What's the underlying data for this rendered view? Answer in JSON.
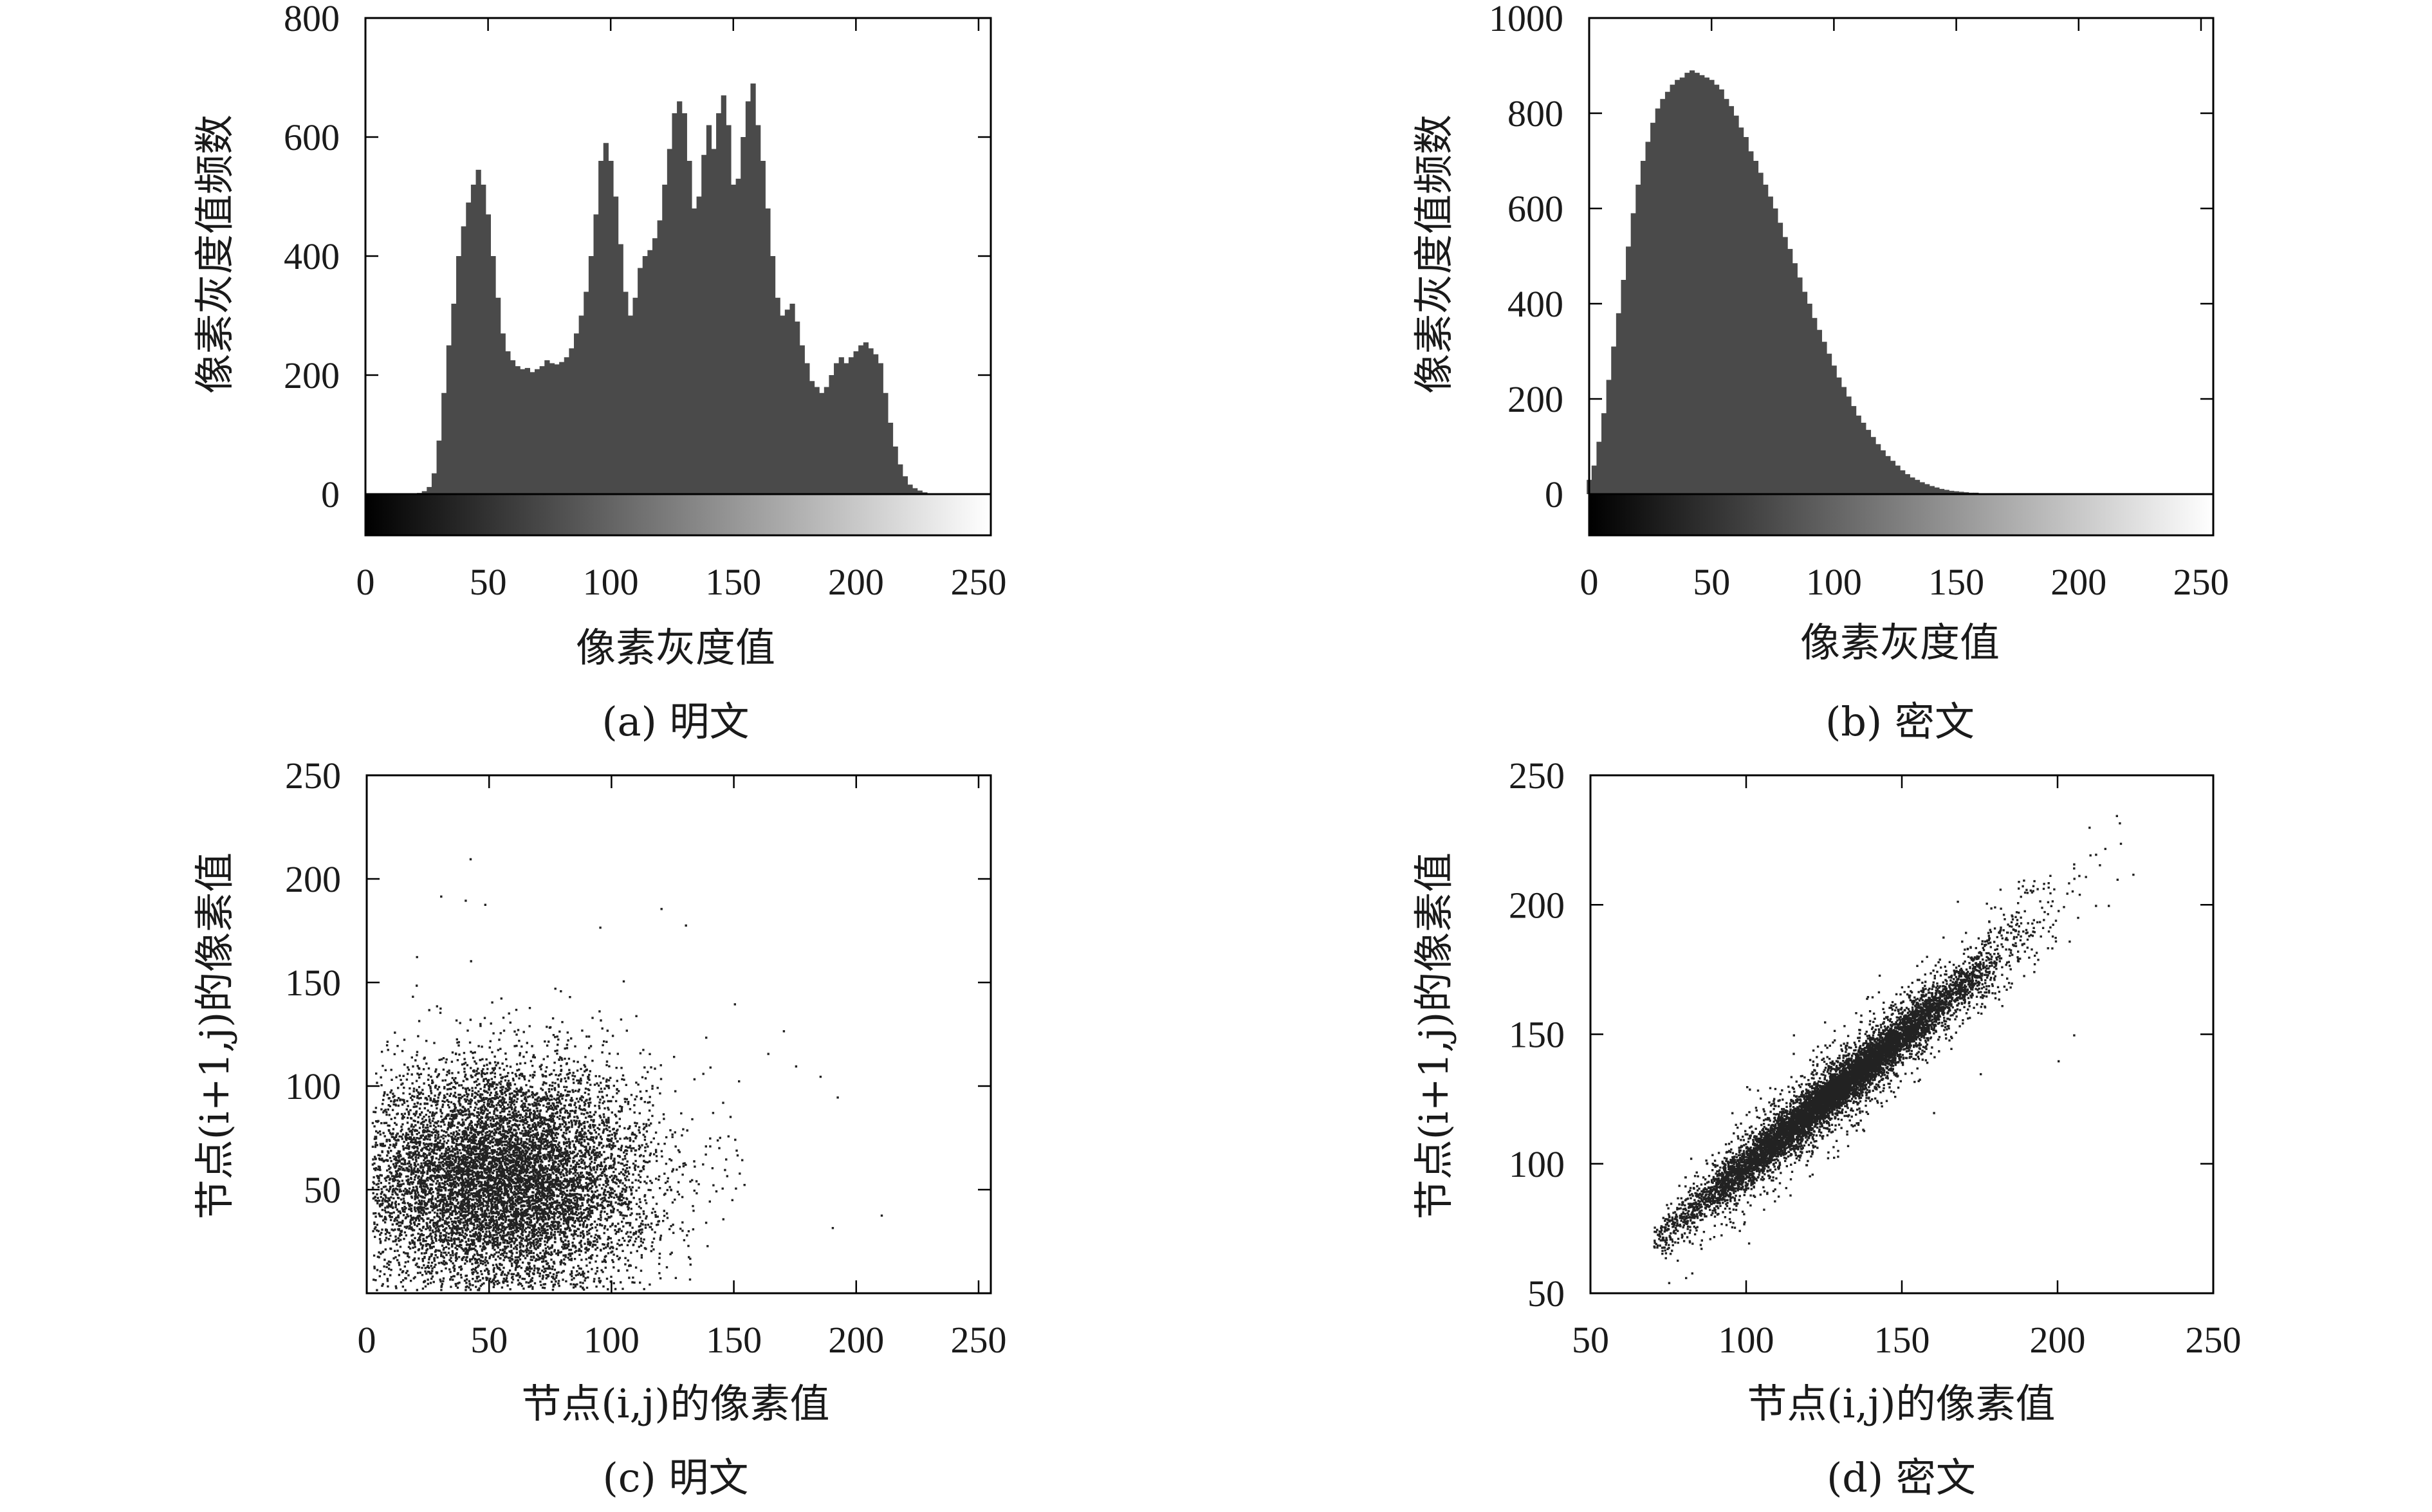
{
  "chart_data": [
    {
      "id": "a",
      "type": "bar",
      "caption": "(a) 明文",
      "xlabel": "像素灰度值",
      "ylabel": "像素灰度值频数",
      "xlim": [
        0,
        255
      ],
      "ylim": [
        0,
        800
      ],
      "xticks": [
        0,
        50,
        100,
        150,
        200,
        250
      ],
      "yticks": [
        0,
        200,
        400,
        600,
        800
      ],
      "grid": false,
      "colorbar": true,
      "bar_color": "#4a4a4a",
      "x": [
        20,
        22,
        24,
        26,
        28,
        30,
        32,
        34,
        36,
        38,
        40,
        42,
        44,
        46,
        48,
        50,
        52,
        54,
        56,
        58,
        60,
        62,
        64,
        66,
        68,
        70,
        72,
        74,
        76,
        78,
        80,
        82,
        84,
        86,
        88,
        90,
        92,
        94,
        96,
        98,
        100,
        102,
        104,
        106,
        108,
        110,
        112,
        114,
        116,
        118,
        120,
        122,
        124,
        126,
        128,
        130,
        132,
        134,
        136,
        138,
        140,
        142,
        144,
        146,
        148,
        150,
        152,
        154,
        156,
        158,
        160,
        162,
        164,
        166,
        168,
        170,
        172,
        174,
        176,
        178,
        180,
        182,
        184,
        186,
        188,
        190,
        192,
        194,
        196,
        198,
        200,
        202,
        204,
        206,
        208,
        210,
        212,
        214,
        216,
        218,
        220,
        222,
        224,
        226,
        228,
        230,
        232
      ],
      "values": [
        0,
        2,
        5,
        12,
        35,
        90,
        170,
        250,
        320,
        400,
        450,
        490,
        520,
        545,
        520,
        470,
        400,
        330,
        270,
        240,
        225,
        215,
        210,
        212,
        205,
        210,
        215,
        225,
        220,
        218,
        222,
        230,
        245,
        270,
        300,
        340,
        400,
        470,
        560,
        590,
        560,
        500,
        420,
        340,
        300,
        330,
        380,
        400,
        410,
        430,
        460,
        520,
        580,
        640,
        660,
        640,
        560,
        480,
        500,
        570,
        620,
        580,
        640,
        670,
        620,
        520,
        530,
        600,
        660,
        690,
        620,
        560,
        480,
        400,
        330,
        300,
        310,
        320,
        290,
        250,
        220,
        190,
        180,
        170,
        180,
        200,
        220,
        230,
        220,
        230,
        240,
        250,
        255,
        245,
        235,
        220,
        170,
        120,
        80,
        50,
        30,
        16,
        10,
        6,
        3,
        1,
        0
      ]
    },
    {
      "id": "b",
      "type": "bar",
      "caption": "(b) 密文",
      "xlabel": "像素灰度值",
      "ylabel": "像素灰度值频数",
      "xlim": [
        0,
        255
      ],
      "ylim": [
        0,
        1000
      ],
      "xticks": [
        0,
        50,
        100,
        150,
        200,
        250
      ],
      "yticks": [
        0,
        200,
        400,
        600,
        800,
        1000
      ],
      "grid": false,
      "colorbar": true,
      "bar_color": "#4a4a4a",
      "x": [
        0,
        2,
        4,
        6,
        8,
        10,
        12,
        14,
        16,
        18,
        20,
        22,
        24,
        26,
        28,
        30,
        32,
        34,
        36,
        38,
        40,
        42,
        44,
        46,
        48,
        50,
        52,
        54,
        56,
        58,
        60,
        62,
        64,
        66,
        68,
        70,
        72,
        74,
        76,
        78,
        80,
        82,
        84,
        86,
        88,
        90,
        92,
        94,
        96,
        98,
        100,
        102,
        104,
        106,
        108,
        110,
        112,
        114,
        116,
        118,
        120,
        122,
        124,
        126,
        128,
        130,
        132,
        134,
        136,
        138,
        140,
        142,
        144,
        146,
        148,
        150,
        152,
        154,
        156,
        158,
        160,
        162,
        164,
        166,
        168,
        170,
        172,
        174,
        176,
        178,
        180,
        185,
        190
      ],
      "values": [
        30,
        60,
        110,
        170,
        240,
        310,
        380,
        450,
        520,
        590,
        650,
        700,
        740,
        780,
        810,
        830,
        845,
        860,
        870,
        875,
        885,
        890,
        885,
        880,
        875,
        870,
        860,
        850,
        830,
        815,
        795,
        770,
        750,
        720,
        700,
        675,
        650,
        625,
        600,
        570,
        540,
        515,
        485,
        455,
        425,
        400,
        370,
        345,
        320,
        295,
        270,
        245,
        225,
        205,
        185,
        165,
        150,
        135,
        120,
        105,
        92,
        80,
        70,
        60,
        50,
        42,
        35,
        30,
        25,
        21,
        17,
        14,
        11,
        9,
        7,
        6,
        5,
        4,
        3,
        3,
        2,
        2,
        1,
        1,
        1,
        1,
        0,
        0,
        0,
        0,
        0,
        0,
        0
      ]
    },
    {
      "id": "c",
      "type": "scatter",
      "caption": "(c) 明文",
      "xlabel": "节点(i,j)的像素值",
      "ylabel": "节点(i+1,j)的像素值",
      "xlim": [
        0,
        255
      ],
      "ylim": [
        0,
        250
      ],
      "xticks": [
        0,
        50,
        100,
        150,
        200,
        250
      ],
      "yticks": [
        50,
        100,
        150,
        200,
        250
      ],
      "grid": false,
      "point_color": "#222222",
      "distribution": {
        "n_points": 9000,
        "x_mean": 55,
        "x_sd": 30,
        "x_min": 2,
        "x_max": 215,
        "y_mean": 55,
        "y_sd": 28,
        "y_min": 2,
        "y_max": 212,
        "correlation": 0.0
      },
      "outliers": [
        [
          42,
          210
        ],
        [
          30,
          192
        ],
        [
          40,
          190
        ],
        [
          48,
          188
        ],
        [
          120,
          186
        ],
        [
          130,
          178
        ],
        [
          95,
          177
        ],
        [
          170,
          127
        ],
        [
          175,
          110
        ],
        [
          185,
          105
        ],
        [
          192,
          95
        ],
        [
          210,
          38
        ],
        [
          190,
          32
        ],
        [
          150,
          140
        ]
      ]
    },
    {
      "id": "d",
      "type": "scatter",
      "caption": "(d) 密文",
      "xlabel": "节点(i,j)的像素值",
      "ylabel": "节点(i+1,j)的像素值",
      "xlim": [
        50,
        250
      ],
      "ylim": [
        50,
        250
      ],
      "xticks": [
        50,
        100,
        150,
        200,
        250
      ],
      "yticks": [
        50,
        100,
        150,
        200,
        250
      ],
      "grid": false,
      "point_color": "#222222",
      "distribution": {
        "n_points": 9000,
        "x_mean": 128,
        "x_sd": 25,
        "x_min": 70,
        "x_max": 225,
        "slope": 1.0,
        "intercept": 0,
        "core_x_range": [
          70,
          175
        ],
        "core_residual_sd": 4,
        "spread_residual_sd": 9
      },
      "outliers": [
        [
          205,
          216
        ],
        [
          215,
          222
        ],
        [
          220,
          224
        ],
        [
          224,
          212
        ],
        [
          212,
          200
        ],
        [
          200,
          198
        ],
        [
          190,
          205
        ],
        [
          180,
          178
        ],
        [
          175,
          135
        ],
        [
          185,
          170
        ],
        [
          160,
          120
        ],
        [
          125,
          155
        ],
        [
          100,
          130
        ],
        [
          115,
          150
        ],
        [
          200,
          140
        ],
        [
          205,
          150
        ]
      ]
    }
  ]
}
